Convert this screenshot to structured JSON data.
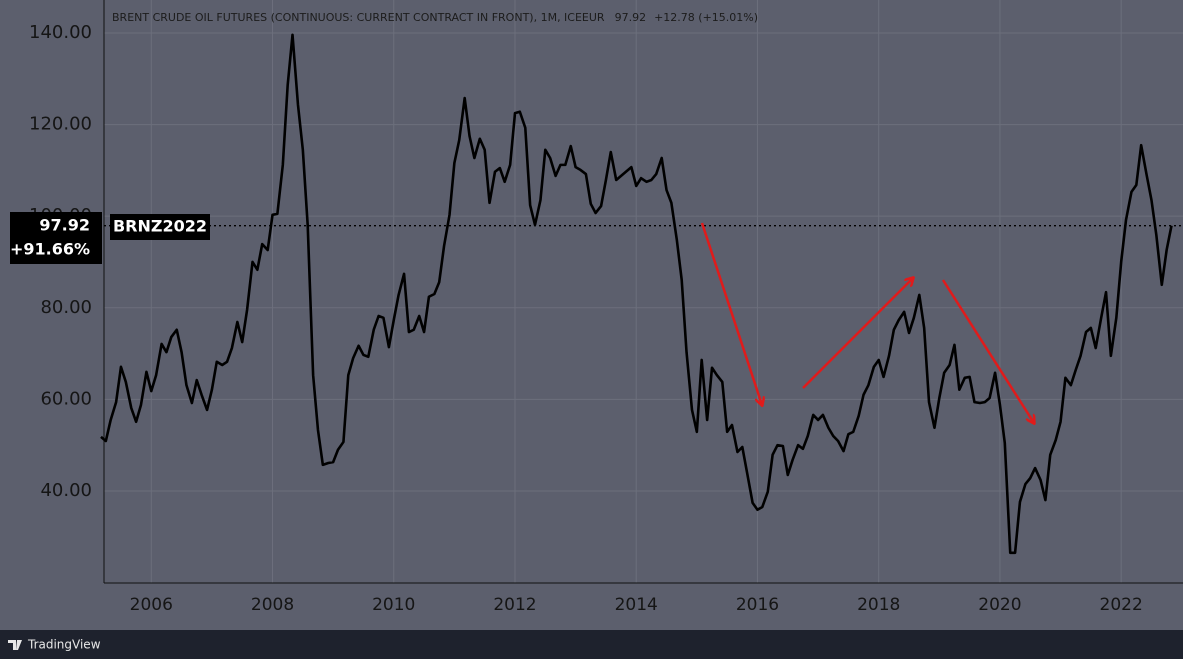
{
  "chart_data": {
    "type": "line",
    "title": "BRENT CRUDE OIL FUTURES (CONTINUOUS: CURRENT CONTRACT IN FRONT), 1M, ICEEUR",
    "price_change": "+12.78 (+15.01%)",
    "symbol": "BRNZ2022",
    "change_since_start": "+91.66%",
    "color": "#000000",
    "x": [
      2005.17,
      2005.25,
      2005.33,
      2005.42,
      2005.5,
      2005.58,
      2005.67,
      2005.75,
      2005.83,
      2005.92,
      2006,
      2006.08,
      2006.17,
      2006.25,
      2006.33,
      2006.42,
      2006.5,
      2006.58,
      2006.67,
      2006.75,
      2006.83,
      2006.92,
      2007,
      2007.08,
      2007.17,
      2007.25,
      2007.33,
      2007.42,
      2007.5,
      2007.58,
      2007.67,
      2007.75,
      2007.83,
      2007.92,
      2008,
      2008.08,
      2008.17,
      2008.25,
      2008.33,
      2008.42,
      2008.5,
      2008.58,
      2008.67,
      2008.75,
      2008.83,
      2008.92,
      2009,
      2009.08,
      2009.17,
      2009.25,
      2009.33,
      2009.42,
      2009.5,
      2009.58,
      2009.67,
      2009.75,
      2009.83,
      2009.92,
      2010,
      2010.08,
      2010.17,
      2010.25,
      2010.33,
      2010.42,
      2010.5,
      2010.58,
      2010.67,
      2010.75,
      2010.83,
      2010.92,
      2011,
      2011.08,
      2011.17,
      2011.25,
      2011.33,
      2011.42,
      2011.5,
      2011.58,
      2011.67,
      2011.75,
      2011.83,
      2011.92,
      2012,
      2012.08,
      2012.17,
      2012.25,
      2012.33,
      2012.42,
      2012.5,
      2012.58,
      2012.67,
      2012.75,
      2012.83,
      2012.92,
      2013,
      2013.08,
      2013.17,
      2013.25,
      2013.33,
      2013.42,
      2013.5,
      2013.58,
      2013.67,
      2013.75,
      2013.83,
      2013.92,
      2014,
      2014.08,
      2014.17,
      2014.25,
      2014.33,
      2014.42,
      2014.5,
      2014.58,
      2014.67,
      2014.75,
      2014.83,
      2014.92,
      2015,
      2015.08,
      2015.17,
      2015.25,
      2015.33,
      2015.42,
      2015.5,
      2015.58,
      2015.67,
      2015.75,
      2015.83,
      2015.92,
      2016,
      2016.08,
      2016.17,
      2016.25,
      2016.33,
      2016.42,
      2016.5,
      2016.58,
      2016.67,
      2016.75,
      2016.83,
      2016.92,
      2017,
      2017.08,
      2017.17,
      2017.25,
      2017.33,
      2017.42,
      2017.5,
      2017.58,
      2017.67,
      2017.75,
      2017.83,
      2017.92,
      2018,
      2018.08,
      2018.17,
      2018.25,
      2018.33,
      2018.42,
      2018.5,
      2018.58,
      2018.67,
      2018.75,
      2018.83,
      2018.92,
      2019,
      2019.08,
      2019.17,
      2019.25,
      2019.33,
      2019.42,
      2019.5,
      2019.58,
      2019.67,
      2019.75,
      2019.83,
      2019.92,
      2020,
      2020.08,
      2020.17,
      2020.25,
      2020.33,
      2020.42,
      2020.5,
      2020.58,
      2020.67,
      2020.75,
      2020.83,
      2020.92,
      2021,
      2021.08,
      2021.17,
      2021.25,
      2021.33,
      2021.42,
      2021.5,
      2021.58,
      2021.67,
      2021.75,
      2021.83,
      2021.92,
      2022,
      2022.08,
      2022.17,
      2022.25,
      2022.33,
      2022.42,
      2022.5,
      2022.58,
      2022.67,
      2022.75,
      2022.83
    ],
    "values": [
      51.8,
      50.9,
      55.5,
      59.4,
      67.1,
      63.8,
      58.1,
      55.1,
      58.8,
      66.0,
      61.8,
      65.3,
      72.1,
      70.3,
      73.6,
      75.2,
      70.3,
      63.1,
      59.2,
      64.2,
      61.0,
      57.7,
      62.1,
      68.2,
      67.5,
      68.2,
      71.2,
      76.9,
      72.5,
      79.5,
      90.0,
      88.3,
      93.9,
      92.6,
      100.3,
      100.5,
      111.2,
      128.6,
      139.6,
      124.3,
      114.5,
      98.1,
      65.3,
      53.3,
      45.7,
      46.1,
      46.3,
      49.0,
      50.7,
      65.3,
      69.0,
      71.7,
      69.7,
      69.3,
      75.2,
      78.2,
      77.8,
      71.4,
      77.3,
      82.8,
      87.4,
      74.7,
      75.2,
      78.2,
      74.7,
      82.4,
      83.0,
      85.6,
      93.5,
      100.3,
      111.6,
      116.6,
      125.8,
      117.5,
      112.7,
      116.9,
      114.5,
      102.9,
      109.7,
      110.5,
      107.5,
      111.2,
      122.5,
      122.8,
      119.3,
      102.4,
      98.1,
      103.5,
      114.5,
      112.7,
      108.8,
      111.2,
      111.2,
      115.3,
      110.7,
      110.1,
      109.2,
      102.7,
      100.7,
      102.2,
      107.9,
      114.0,
      107.9,
      108.8,
      109.7,
      110.7,
      106.6,
      108.3,
      107.5,
      107.9,
      109.2,
      112.7,
      105.7,
      102.9,
      94.8,
      86.1,
      70.3,
      57.7,
      52.9,
      68.6,
      55.5,
      66.9,
      65.3,
      63.8,
      52.9,
      54.4,
      48.5,
      49.6,
      43.9,
      37.4,
      35.9,
      36.5,
      39.8,
      47.9,
      50.0,
      49.8,
      43.5,
      46.8,
      50.0,
      49.2,
      52.0,
      56.6,
      55.5,
      56.6,
      53.8,
      52.0,
      50.9,
      48.7,
      52.4,
      52.9,
      56.4,
      61.0,
      63.1,
      67.1,
      68.6,
      64.9,
      69.5,
      75.2,
      77.3,
      79.1,
      74.5,
      77.8,
      82.8,
      75.6,
      59.4,
      53.8,
      60.3,
      65.8,
      67.5,
      71.9,
      62.1,
      64.7,
      64.9,
      59.4,
      59.2,
      59.4,
      60.3,
      65.8,
      58.8,
      50.5,
      26.5,
      26.5,
      37.6,
      41.5,
      42.8,
      45.0,
      42.4,
      38.0,
      47.9,
      51.1,
      55.1,
      64.7,
      63.1,
      66.4,
      69.5,
      74.7,
      75.6,
      71.2,
      77.8,
      83.4,
      69.5,
      77.8,
      90.0,
      99.2,
      105.3,
      106.8,
      115.5,
      109.0,
      103.5,
      95.9,
      85.0,
      92.6,
      97.92
    ],
    "xlim": [
      2005.22,
      2023.02
    ],
    "ylim": [
      19.9,
      147.2
    ],
    "xticks": [
      2006,
      2008,
      2010,
      2012,
      2014,
      2016,
      2018,
      2020,
      2022
    ],
    "yticks": [
      {
        "value": 40,
        "label": "40.00"
      },
      {
        "value": 60,
        "label": "60.00"
      },
      {
        "value": 80,
        "label": "80.00"
      },
      {
        "value": 100,
        "label": "100.00"
      },
      {
        "value": 120,
        "label": "120.00"
      },
      {
        "value": 140,
        "label": "140.00"
      }
    ],
    "grid": true
  },
  "footer": {
    "brand": "TradingView"
  }
}
